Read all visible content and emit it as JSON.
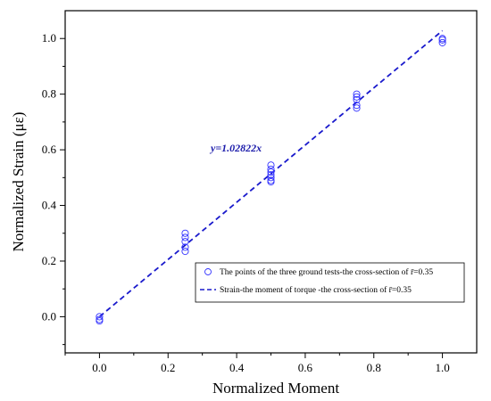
{
  "chart_data": {
    "type": "scatter",
    "xlabel": "Normalized  Moment",
    "ylabel": "Normalized Strain (με)",
    "xlim": [
      -0.1,
      1.1
    ],
    "ylim": [
      -0.13,
      1.1
    ],
    "x_ticks": [
      "0.0",
      "0.2",
      "0.4",
      "0.6",
      "0.8",
      "1.0"
    ],
    "y_ticks": [
      "0.0",
      "0.2",
      "0.4",
      "0.6",
      "0.8",
      "1.0"
    ],
    "x_tick_values": [
      0,
      0.2,
      0.4,
      0.6,
      0.8,
      1.0
    ],
    "y_tick_values": [
      0,
      0.2,
      0.4,
      0.6,
      0.8,
      1.0
    ],
    "grid": false,
    "legend_position": "bottom-right",
    "colors": {
      "points": "#3333ff",
      "fit": "#1a1acc",
      "annotation": "#1a1aaa"
    },
    "annotation": "y=1.02822x",
    "series": [
      {
        "name": "The points of the three ground tests-the cross-section of r̄=0.35",
        "kind": "points",
        "x": [
          0,
          0,
          0,
          0.25,
          0.25,
          0.25,
          0.25,
          0.25,
          0.5,
          0.5,
          0.5,
          0.5,
          0.5,
          0.5,
          0.5,
          0.75,
          0.75,
          0.75,
          0.75,
          0.75,
          1.0,
          1.0,
          1.0
        ],
        "y": [
          0.0,
          -0.01,
          -0.015,
          0.3,
          0.285,
          0.27,
          0.25,
          0.235,
          0.545,
          0.53,
          0.52,
          0.51,
          0.5,
          0.49,
          0.485,
          0.8,
          0.79,
          0.78,
          0.76,
          0.75,
          1.0,
          0.995,
          0.985
        ]
      },
      {
        "name": "Strain-the moment of torque -the cross-section of r̄=0.35",
        "kind": "fit",
        "slope": 1.02822,
        "x": [
          0,
          1.0
        ],
        "y": [
          0,
          1.02822
        ]
      }
    ]
  }
}
